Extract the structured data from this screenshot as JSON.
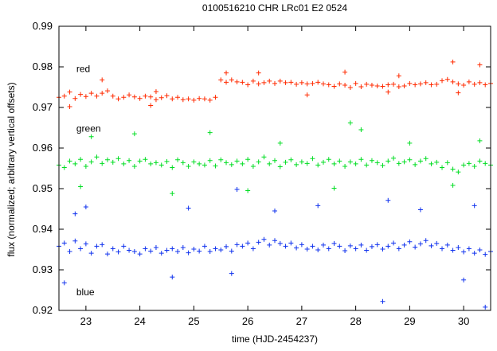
{
  "chart_data": {
    "type": "scatter",
    "title": "0100516210 CHR LRc01 E2 0524",
    "xlabel": "time (HJD-2454237)",
    "ylabel": "flux (normalized; arbitrary vertical offsets)",
    "xlim": [
      22.5,
      30.5
    ],
    "ylim": [
      0.92,
      0.99
    ],
    "x_ticks": [
      "23",
      "24",
      "25",
      "26",
      "27",
      "28",
      "29",
      "30"
    ],
    "y_ticks": [
      "0.92",
      "0.93",
      "0.94",
      "0.95",
      "0.96",
      "0.97",
      "0.98",
      "0.99"
    ],
    "grid": false,
    "marker": "+",
    "series": [
      {
        "name": "red",
        "color": "#ff2a00",
        "label_pos": [
          23.0,
          0.9795
        ],
        "points": [
          [
            22.5,
            0.9725
          ],
          [
            22.6,
            0.9728
          ],
          [
            22.7,
            0.9738
          ],
          [
            22.8,
            0.9722
          ],
          [
            22.9,
            0.9732
          ],
          [
            23.0,
            0.9727
          ],
          [
            23.1,
            0.9735
          ],
          [
            23.2,
            0.9728
          ],
          [
            23.3,
            0.9735
          ],
          [
            23.4,
            0.9741
          ],
          [
            23.5,
            0.9728
          ],
          [
            23.6,
            0.9721
          ],
          [
            23.7,
            0.9725
          ],
          [
            23.8,
            0.9731
          ],
          [
            23.9,
            0.9726
          ],
          [
            24.0,
            0.9722
          ],
          [
            24.1,
            0.9728
          ],
          [
            24.2,
            0.9726
          ],
          [
            24.3,
            0.9719
          ],
          [
            24.4,
            0.9724
          ],
          [
            24.5,
            0.9729
          ],
          [
            24.6,
            0.9721
          ],
          [
            24.7,
            0.9725
          ],
          [
            24.8,
            0.9719
          ],
          [
            24.9,
            0.9721
          ],
          [
            25.0,
            0.9718
          ],
          [
            25.1,
            0.9722
          ],
          [
            25.2,
            0.9721
          ],
          [
            25.3,
            0.9718
          ],
          [
            25.4,
            0.9725
          ],
          [
            25.5,
            0.9768
          ],
          [
            25.6,
            0.9762
          ],
          [
            25.7,
            0.9768
          ],
          [
            25.8,
            0.9763
          ],
          [
            25.9,
            0.9762
          ],
          [
            26.0,
            0.9756
          ],
          [
            26.1,
            0.9765
          ],
          [
            26.2,
            0.9758
          ],
          [
            26.3,
            0.9761
          ],
          [
            26.4,
            0.9765
          ],
          [
            26.5,
            0.9759
          ],
          [
            26.6,
            0.9765
          ],
          [
            26.7,
            0.9761
          ],
          [
            26.8,
            0.9762
          ],
          [
            26.9,
            0.9757
          ],
          [
            27.0,
            0.9761
          ],
          [
            27.1,
            0.9758
          ],
          [
            27.2,
            0.9759
          ],
          [
            27.3,
            0.9762
          ],
          [
            27.4,
            0.9758
          ],
          [
            27.5,
            0.9756
          ],
          [
            27.6,
            0.9752
          ],
          [
            27.7,
            0.9758
          ],
          [
            27.8,
            0.9755
          ],
          [
            27.9,
            0.9749
          ],
          [
            28.0,
            0.9759
          ],
          [
            28.1,
            0.9751
          ],
          [
            28.2,
            0.9757
          ],
          [
            28.3,
            0.9755
          ],
          [
            28.4,
            0.9753
          ],
          [
            28.5,
            0.9752
          ],
          [
            28.6,
            0.9756
          ],
          [
            28.7,
            0.9757
          ],
          [
            28.8,
            0.9751
          ],
          [
            28.9,
            0.9753
          ],
          [
            29.0,
            0.9759
          ],
          [
            29.1,
            0.9756
          ],
          [
            29.2,
            0.9758
          ],
          [
            29.3,
            0.9761
          ],
          [
            29.4,
            0.9756
          ],
          [
            29.5,
            0.9757
          ],
          [
            29.6,
            0.9766
          ],
          [
            29.7,
            0.9769
          ],
          [
            29.8,
            0.9763
          ],
          [
            29.9,
            0.9758
          ],
          [
            30.0,
            0.9755
          ],
          [
            30.1,
            0.9763
          ],
          [
            30.2,
            0.9757
          ],
          [
            30.3,
            0.9761
          ],
          [
            30.4,
            0.9756
          ],
          [
            30.5,
            0.9759
          ],
          [
            23.3,
            0.9768
          ],
          [
            24.3,
            0.9739
          ],
          [
            25.6,
            0.9785
          ],
          [
            26.2,
            0.9785
          ],
          [
            27.8,
            0.9787
          ],
          [
            28.8,
            0.9778
          ],
          [
            29.8,
            0.9812
          ],
          [
            30.3,
            0.9805
          ],
          [
            22.7,
            0.9702
          ],
          [
            24.2,
            0.9705
          ],
          [
            27.1,
            0.9731
          ],
          [
            28.6,
            0.9738
          ],
          [
            29.9,
            0.9736
          ]
        ]
      },
      {
        "name": "green",
        "color": "#00dd22",
        "label_pos": [
          23.0,
          0.9648
        ],
        "points": [
          [
            22.5,
            0.9558
          ],
          [
            22.6,
            0.9552
          ],
          [
            22.7,
            0.9568
          ],
          [
            22.8,
            0.9561
          ],
          [
            22.9,
            0.9572
          ],
          [
            23.0,
            0.9555
          ],
          [
            23.1,
            0.9566
          ],
          [
            23.2,
            0.9578
          ],
          [
            23.3,
            0.9562
          ],
          [
            23.4,
            0.9571
          ],
          [
            23.5,
            0.9565
          ],
          [
            23.6,
            0.9574
          ],
          [
            23.7,
            0.9561
          ],
          [
            23.8,
            0.9569
          ],
          [
            23.9,
            0.9555
          ],
          [
            24.0,
            0.9568
          ],
          [
            24.1,
            0.9572
          ],
          [
            24.2,
            0.9561
          ],
          [
            24.3,
            0.9564
          ],
          [
            24.4,
            0.9558
          ],
          [
            24.5,
            0.9567
          ],
          [
            24.6,
            0.9552
          ],
          [
            24.7,
            0.9571
          ],
          [
            24.8,
            0.9564
          ],
          [
            24.9,
            0.9555
          ],
          [
            25.0,
            0.9566
          ],
          [
            25.1,
            0.9561
          ],
          [
            25.2,
            0.9558
          ],
          [
            25.3,
            0.9569
          ],
          [
            25.4,
            0.9556
          ],
          [
            25.5,
            0.9571
          ],
          [
            25.6,
            0.9564
          ],
          [
            25.7,
            0.9559
          ],
          [
            25.8,
            0.9568
          ],
          [
            25.9,
            0.9561
          ],
          [
            26.0,
            0.9572
          ],
          [
            26.1,
            0.9555
          ],
          [
            26.2,
            0.9566
          ],
          [
            26.3,
            0.9578
          ],
          [
            26.4,
            0.9561
          ],
          [
            26.5,
            0.9569
          ],
          [
            26.6,
            0.9554
          ],
          [
            26.7,
            0.9565
          ],
          [
            26.8,
            0.9571
          ],
          [
            26.9,
            0.9559
          ],
          [
            27.0,
            0.9566
          ],
          [
            27.1,
            0.9562
          ],
          [
            27.2,
            0.9574
          ],
          [
            27.3,
            0.9558
          ],
          [
            27.4,
            0.9565
          ],
          [
            27.5,
            0.9572
          ],
          [
            27.6,
            0.9561
          ],
          [
            27.7,
            0.9568
          ],
          [
            27.8,
            0.9555
          ],
          [
            27.9,
            0.9566
          ],
          [
            28.0,
            0.9561
          ],
          [
            28.1,
            0.9572
          ],
          [
            28.2,
            0.9558
          ],
          [
            28.3,
            0.9569
          ],
          [
            28.4,
            0.9564
          ],
          [
            28.5,
            0.9557
          ],
          [
            28.6,
            0.9568
          ],
          [
            28.7,
            0.9575
          ],
          [
            28.8,
            0.9562
          ],
          [
            28.9,
            0.9566
          ],
          [
            29.0,
            0.9571
          ],
          [
            29.1,
            0.9559
          ],
          [
            29.2,
            0.9568
          ],
          [
            29.3,
            0.9574
          ],
          [
            29.4,
            0.9561
          ],
          [
            29.5,
            0.9565
          ],
          [
            29.6,
            0.9552
          ],
          [
            29.7,
            0.9564
          ],
          [
            29.8,
            0.9548
          ],
          [
            29.9,
            0.9541
          ],
          [
            30.0,
            0.9558
          ],
          [
            30.1,
            0.9562
          ],
          [
            30.2,
            0.9555
          ],
          [
            30.3,
            0.9568
          ],
          [
            30.4,
            0.9562
          ],
          [
            30.5,
            0.9558
          ],
          [
            23.1,
            0.9628
          ],
          [
            23.9,
            0.9635
          ],
          [
            25.3,
            0.9638
          ],
          [
            26.6,
            0.9612
          ],
          [
            27.9,
            0.9662
          ],
          [
            28.1,
            0.9645
          ],
          [
            29.0,
            0.9612
          ],
          [
            30.3,
            0.9618
          ],
          [
            22.9,
            0.9505
          ],
          [
            24.6,
            0.9488
          ],
          [
            26.0,
            0.9495
          ],
          [
            27.6,
            0.9501
          ],
          [
            29.8,
            0.9508
          ]
        ]
      },
      {
        "name": "blue",
        "color": "#1133ee",
        "label_pos": [
          23.0,
          0.9245
        ],
        "points": [
          [
            22.5,
            0.9358
          ],
          [
            22.6,
            0.9366
          ],
          [
            22.7,
            0.9345
          ],
          [
            22.8,
            0.9371
          ],
          [
            22.9,
            0.9352
          ],
          [
            23.0,
            0.9364
          ],
          [
            23.1,
            0.9341
          ],
          [
            23.2,
            0.9358
          ],
          [
            23.3,
            0.9362
          ],
          [
            23.4,
            0.9339
          ],
          [
            23.5,
            0.9352
          ],
          [
            23.6,
            0.9344
          ],
          [
            23.7,
            0.9358
          ],
          [
            23.8,
            0.9348
          ],
          [
            23.9,
            0.9345
          ],
          [
            24.0,
            0.9339
          ],
          [
            24.1,
            0.9352
          ],
          [
            24.2,
            0.9346
          ],
          [
            24.3,
            0.9355
          ],
          [
            24.4,
            0.9341
          ],
          [
            24.5,
            0.9348
          ],
          [
            24.6,
            0.9352
          ],
          [
            24.7,
            0.9345
          ],
          [
            24.8,
            0.9355
          ],
          [
            24.9,
            0.9342
          ],
          [
            25.0,
            0.9351
          ],
          [
            25.1,
            0.9346
          ],
          [
            25.2,
            0.9358
          ],
          [
            25.3,
            0.9345
          ],
          [
            25.4,
            0.9352
          ],
          [
            25.5,
            0.9349
          ],
          [
            25.6,
            0.9357
          ],
          [
            25.7,
            0.9346
          ],
          [
            25.8,
            0.9362
          ],
          [
            25.9,
            0.9358
          ],
          [
            26.0,
            0.9366
          ],
          [
            26.1,
            0.9352
          ],
          [
            26.2,
            0.9368
          ],
          [
            26.3,
            0.9375
          ],
          [
            26.4,
            0.9361
          ],
          [
            26.5,
            0.9372
          ],
          [
            26.6,
            0.9365
          ],
          [
            26.7,
            0.9358
          ],
          [
            26.8,
            0.9366
          ],
          [
            26.9,
            0.9354
          ],
          [
            27.0,
            0.9362
          ],
          [
            27.1,
            0.9351
          ],
          [
            27.2,
            0.9358
          ],
          [
            27.3,
            0.9349
          ],
          [
            27.4,
            0.9361
          ],
          [
            27.5,
            0.9352
          ],
          [
            27.6,
            0.9365
          ],
          [
            27.7,
            0.9358
          ],
          [
            27.8,
            0.9347
          ],
          [
            27.9,
            0.9359
          ],
          [
            28.0,
            0.9352
          ],
          [
            28.1,
            0.9361
          ],
          [
            28.2,
            0.9348
          ],
          [
            28.3,
            0.9357
          ],
          [
            28.4,
            0.9362
          ],
          [
            28.5,
            0.9351
          ],
          [
            28.6,
            0.9358
          ],
          [
            28.7,
            0.9366
          ],
          [
            28.8,
            0.9352
          ],
          [
            28.9,
            0.9361
          ],
          [
            29.0,
            0.9369
          ],
          [
            29.1,
            0.9356
          ],
          [
            29.2,
            0.9364
          ],
          [
            29.3,
            0.9372
          ],
          [
            29.4,
            0.9359
          ],
          [
            29.5,
            0.9365
          ],
          [
            29.6,
            0.9352
          ],
          [
            29.7,
            0.9361
          ],
          [
            29.8,
            0.9348
          ],
          [
            29.9,
            0.9355
          ],
          [
            30.0,
            0.9344
          ],
          [
            30.1,
            0.9352
          ],
          [
            30.2,
            0.9341
          ],
          [
            30.3,
            0.9349
          ],
          [
            30.4,
            0.9338
          ],
          [
            30.5,
            0.9345
          ],
          [
            22.8,
            0.9438
          ],
          [
            23.0,
            0.9455
          ],
          [
            24.9,
            0.9452
          ],
          [
            25.8,
            0.9498
          ],
          [
            26.5,
            0.9445
          ],
          [
            27.3,
            0.9458
          ],
          [
            28.6,
            0.9471
          ],
          [
            29.2,
            0.9448
          ],
          [
            30.2,
            0.9458
          ],
          [
            22.6,
            0.9268
          ],
          [
            24.6,
            0.9282
          ],
          [
            25.7,
            0.9291
          ],
          [
            28.5,
            0.9222
          ],
          [
            30.0,
            0.9275
          ],
          [
            30.4,
            0.9208
          ]
        ]
      }
    ]
  }
}
